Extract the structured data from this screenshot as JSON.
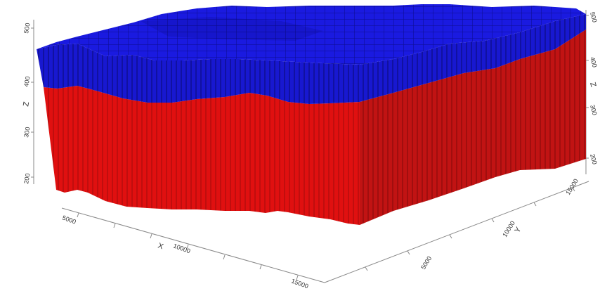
{
  "model": {
    "upper_layer_color": "#1515d8",
    "lower_layer_color": "#e01010",
    "side_right_upper_color": "#1a1ab8",
    "side_right_lower_color": "#c01212"
  },
  "axes": {
    "x": {
      "title": "X",
      "ticks": [
        "5000",
        "10000",
        "15000"
      ]
    },
    "y": {
      "title": "Y",
      "ticks": [
        "5000",
        "10000",
        "15000"
      ]
    },
    "z": {
      "title": "Z",
      "ticks": [
        "200",
        "300",
        "400",
        "500"
      ]
    },
    "z_right_ticks": [
      "500",
      "400",
      "300",
      "200"
    ]
  }
}
